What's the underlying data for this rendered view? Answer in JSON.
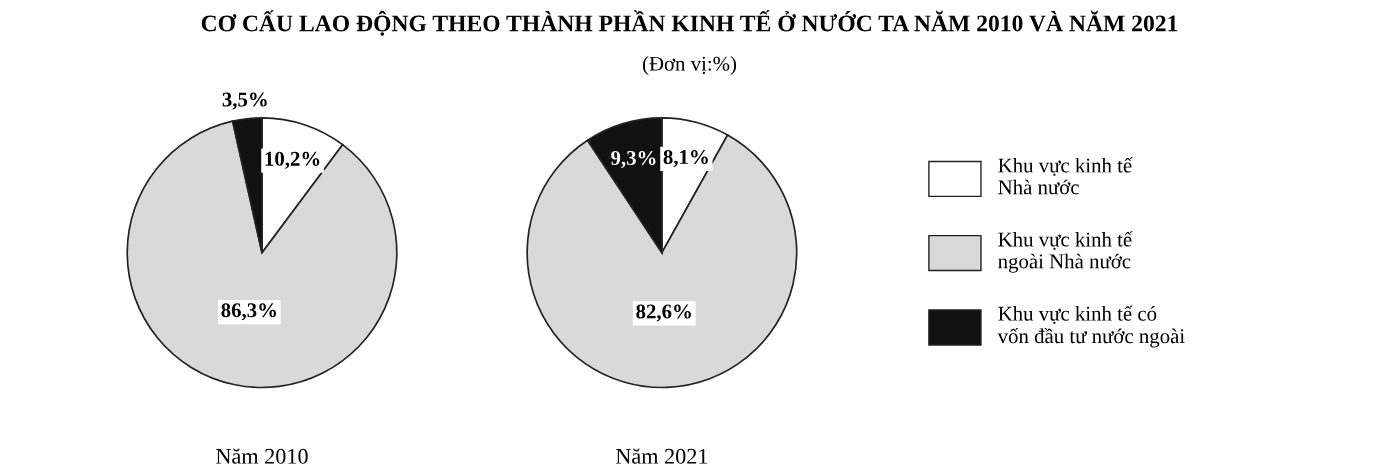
{
  "chart_data": [
    {
      "type": "pie",
      "title": "CƠ CẤU LAO ĐỘNG THEO THÀNH PHẦN KINH TẾ Ở NƯỚC TA NĂM 2010 VÀ NĂM 2021",
      "xlabel": "Năm 2010",
      "legend": "right",
      "categories": [
        "Khu vực kinh tế\nNhà nước",
        "Khu vực kinh tế\nngoài Nhà nước",
        "Khu vực kinh tế có\nvốn đầu tư nước ngoài"
      ],
      "values": [
        10.2,
        86.3,
        3.5
      ],
      "colors": [
        "#ffffff",
        "#d9d9d9",
        "#111111"
      ],
      "value_labels": [
        "10,2%",
        "86,3%",
        "3,5%"
      ]
    },
    {
      "type": "pie",
      "subtitle": "(Đơn vị:%)",
      "xlabel": "Năm 2021",
      "categories": [
        null,
        null,
        null
      ],
      "values": [
        8.1,
        82.6,
        9.3
      ],
      "colors": [
        "#ffffff",
        "#d9d9d9",
        "#111111"
      ],
      "value_labels": [
        "8,1%",
        "82,6%",
        "9,3%"
      ]
    }
  ]
}
